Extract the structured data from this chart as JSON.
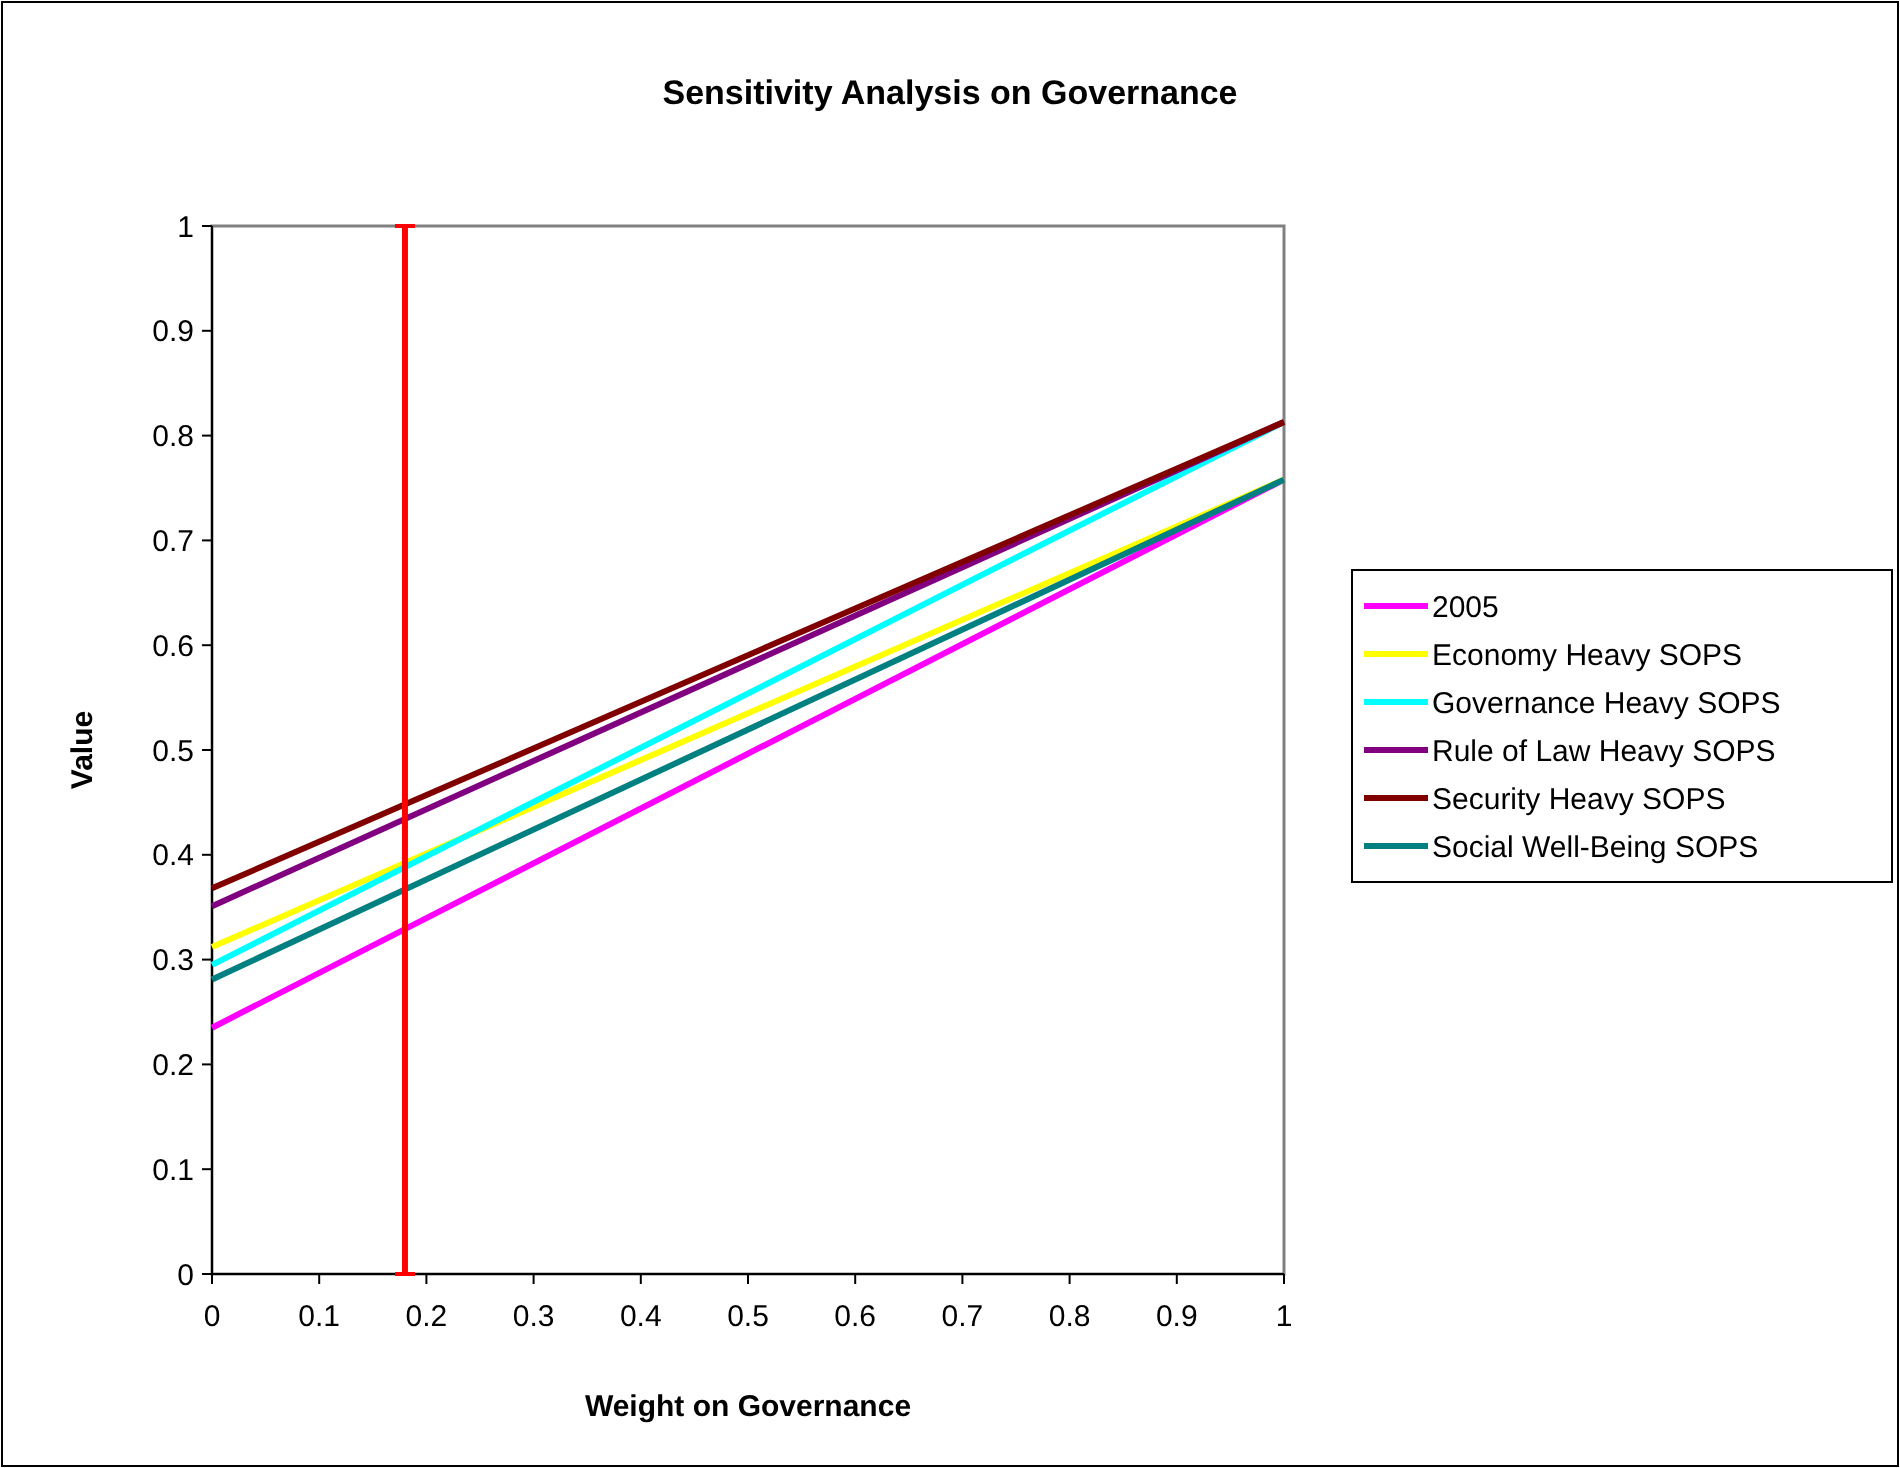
{
  "chart_data": {
    "type": "line",
    "title": "Sensitivity Analysis on Governance",
    "xlabel": "Weight on Governance",
    "ylabel": "Value",
    "x": [
      0,
      1
    ],
    "series": [
      {
        "name": "2005",
        "color": "#ff00ff",
        "values": [
          0.235,
          0.758
        ]
      },
      {
        "name": "Economy Heavy SOPS",
        "color": "#ffff00",
        "values": [
          0.312,
          0.758
        ]
      },
      {
        "name": "Governance Heavy SOPS",
        "color": "#00ffff",
        "values": [
          0.295,
          0.813
        ]
      },
      {
        "name": "Rule of Law Heavy SOPS",
        "color": "#800080",
        "values": [
          0.351,
          0.813
        ]
      },
      {
        "name": "Security Heavy SOPS",
        "color": "#800000",
        "values": [
          0.368,
          0.813
        ]
      },
      {
        "name": "Social Well-Being SOPS",
        "color": "#008080",
        "values": [
          0.281,
          0.758
        ]
      }
    ],
    "xlim": [
      0,
      1
    ],
    "xticks": [
      0,
      0.1,
      0.2,
      0.3,
      0.4,
      0.5,
      0.6,
      0.7,
      0.8,
      0.9,
      1
    ],
    "ylim": [
      0,
      1
    ],
    "yticks": [
      0,
      0.1,
      0.2,
      0.3,
      0.4,
      0.5,
      0.6,
      0.7,
      0.8,
      0.9,
      1
    ],
    "ref_lines": [
      {
        "axis": "x",
        "value": 0.18,
        "color": "#ff0000"
      }
    ],
    "grid": false,
    "legend": "right",
    "marker": "none",
    "line_style": "solid"
  }
}
